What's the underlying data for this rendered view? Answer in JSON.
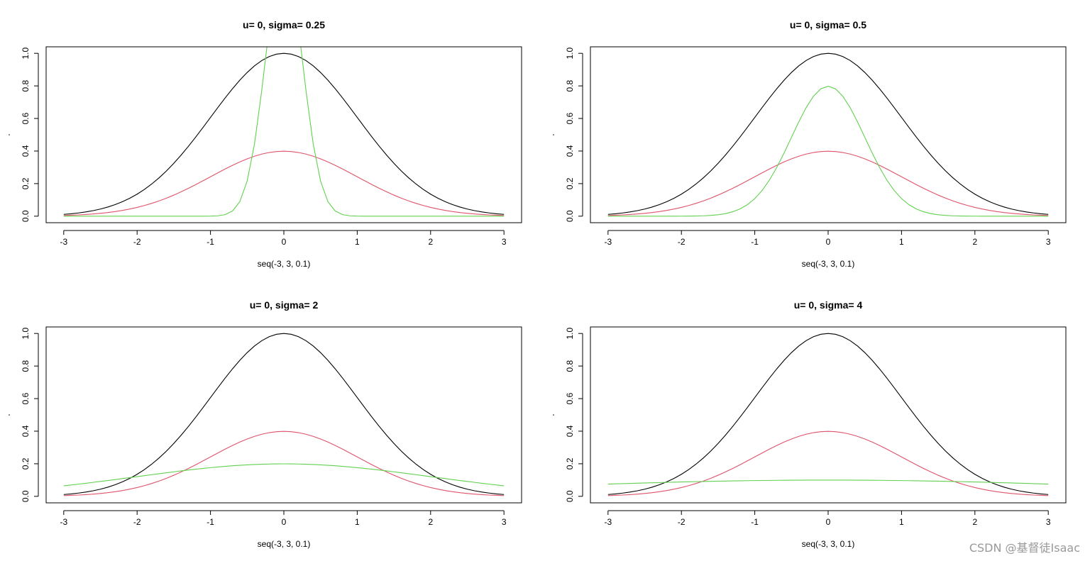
{
  "colors": {
    "black": "#000000",
    "red": "#DF536B",
    "green": "#61D04F",
    "background": "#ffffff"
  },
  "watermark": "CSDN @基督徒Isaac",
  "chart_data": [
    {
      "type": "line",
      "title": "u= 0, sigma= 0.25",
      "xlabel": "seq(-3, 3, 0.1)",
      "ylabel": "",
      "x": {
        "from": -3,
        "to": 3,
        "step": 0.1
      },
      "xlim": [
        -3,
        3
      ],
      "ylim": [
        0,
        1
      ],
      "xticks": [
        -3,
        -2,
        -1,
        0,
        1,
        2,
        3
      ],
      "yticks": [
        0,
        0.2,
        0.4,
        0.6,
        0.8,
        1
      ],
      "ytick_labels": [
        "0.0",
        "0.2",
        "0.4",
        "0.6",
        "0.8",
        "1.0"
      ],
      "series": [
        {
          "name": "exp(-x^2/2)",
          "color": "black",
          "curve": "exp",
          "u": 0,
          "sigma": 1
        },
        {
          "name": "dnorm(x, 0, 1)",
          "color": "red",
          "curve": "dnorm",
          "u": 0,
          "sigma": 1
        },
        {
          "name": "dnorm(x, 0, 0.25)",
          "color": "green",
          "curve": "dnorm",
          "u": 0,
          "sigma": 0.25
        }
      ]
    },
    {
      "type": "line",
      "title": "u= 0, sigma= 0.5",
      "xlabel": "seq(-3, 3, 0.1)",
      "ylabel": "",
      "x": {
        "from": -3,
        "to": 3,
        "step": 0.1
      },
      "xlim": [
        -3,
        3
      ],
      "ylim": [
        0,
        1
      ],
      "xticks": [
        -3,
        -2,
        -1,
        0,
        1,
        2,
        3
      ],
      "yticks": [
        0,
        0.2,
        0.4,
        0.6,
        0.8,
        1
      ],
      "ytick_labels": [
        "0.0",
        "0.2",
        "0.4",
        "0.6",
        "0.8",
        "1.0"
      ],
      "series": [
        {
          "name": "exp(-x^2/2)",
          "color": "black",
          "curve": "exp",
          "u": 0,
          "sigma": 1
        },
        {
          "name": "dnorm(x, 0, 1)",
          "color": "red",
          "curve": "dnorm",
          "u": 0,
          "sigma": 1
        },
        {
          "name": "dnorm(x, 0, 0.5)",
          "color": "green",
          "curve": "dnorm",
          "u": 0,
          "sigma": 0.5
        }
      ]
    },
    {
      "type": "line",
      "title": "u= 0, sigma= 2",
      "xlabel": "seq(-3, 3, 0.1)",
      "ylabel": "",
      "x": {
        "from": -3,
        "to": 3,
        "step": 0.1
      },
      "xlim": [
        -3,
        3
      ],
      "ylim": [
        0,
        1
      ],
      "xticks": [
        -3,
        -2,
        -1,
        0,
        1,
        2,
        3
      ],
      "yticks": [
        0,
        0.2,
        0.4,
        0.6,
        0.8,
        1
      ],
      "ytick_labels": [
        "0.0",
        "0.2",
        "0.4",
        "0.6",
        "0.8",
        "1.0"
      ],
      "series": [
        {
          "name": "exp(-x^2/2)",
          "color": "black",
          "curve": "exp",
          "u": 0,
          "sigma": 1
        },
        {
          "name": "dnorm(x, 0, 1)",
          "color": "red",
          "curve": "dnorm",
          "u": 0,
          "sigma": 1
        },
        {
          "name": "dnorm(x, 0, 2)",
          "color": "green",
          "curve": "dnorm",
          "u": 0,
          "sigma": 2
        }
      ]
    },
    {
      "type": "line",
      "title": "u= 0, sigma= 4",
      "xlabel": "seq(-3, 3, 0.1)",
      "ylabel": "",
      "x": {
        "from": -3,
        "to": 3,
        "step": 0.1
      },
      "xlim": [
        -3,
        3
      ],
      "ylim": [
        0,
        1
      ],
      "xticks": [
        -3,
        -2,
        -1,
        0,
        1,
        2,
        3
      ],
      "yticks": [
        0,
        0.2,
        0.4,
        0.6,
        0.8,
        1
      ],
      "ytick_labels": [
        "0.0",
        "0.2",
        "0.4",
        "0.6",
        "0.8",
        "1.0"
      ],
      "series": [
        {
          "name": "exp(-x^2/2)",
          "color": "black",
          "curve": "exp",
          "u": 0,
          "sigma": 1
        },
        {
          "name": "dnorm(x, 0, 1)",
          "color": "red",
          "curve": "dnorm",
          "u": 0,
          "sigma": 1
        },
        {
          "name": "dnorm(x, 0, 4)",
          "color": "green",
          "curve": "dnorm",
          "u": 0,
          "sigma": 4
        }
      ]
    }
  ]
}
